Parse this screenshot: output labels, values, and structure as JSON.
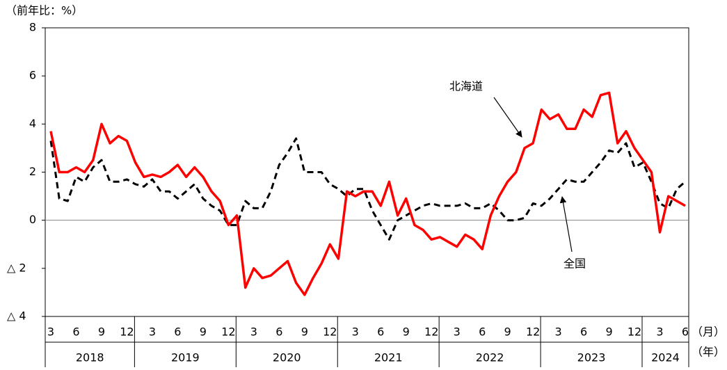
{
  "chart_data": {
    "type": "line",
    "y_axis_label": "（前年比：%）",
    "x_unit_label": "（月）",
    "year_unit_label": "（年）",
    "categories": [
      "3",
      null,
      null,
      "6",
      null,
      null,
      "9",
      null,
      null,
      "12",
      null,
      null,
      "3",
      null,
      null,
      "6",
      null,
      null,
      "9",
      null,
      null,
      "12",
      null,
      null,
      "3",
      null,
      null,
      "6",
      null,
      null,
      "9",
      null,
      null,
      "12",
      null,
      null,
      "3",
      null,
      null,
      "6",
      null,
      null,
      "9",
      null,
      null,
      "12",
      null,
      null,
      "3",
      null,
      null,
      "6",
      null,
      null,
      "9",
      null,
      null,
      "12",
      null,
      null,
      "3",
      null,
      null,
      "6",
      null,
      null,
      "9",
      null,
      null,
      "12",
      null,
      null,
      "3",
      null,
      null,
      "6"
    ],
    "years": [
      "2018",
      "2019",
      "2020",
      "2021",
      "2022",
      "2023",
      "2024"
    ],
    "series": [
      {
        "name": "北海道",
        "color": "#ff0000",
        "dash": false,
        "values": [
          3.7,
          2.0,
          2.0,
          2.2,
          2.0,
          2.5,
          4.0,
          3.2,
          3.5,
          3.3,
          2.4,
          1.8,
          1.9,
          1.8,
          2.0,
          2.3,
          1.8,
          2.2,
          1.8,
          1.2,
          0.8,
          -0.2,
          0.2,
          -2.8,
          -2.0,
          -2.4,
          -2.3,
          -2.0,
          -1.7,
          -2.6,
          -3.1,
          -2.4,
          -1.8,
          -1.0,
          -1.6,
          1.2,
          1.0,
          1.2,
          1.2,
          0.6,
          1.6,
          0.2,
          0.9,
          -0.2,
          -0.4,
          -0.8,
          -0.7,
          -0.9,
          -1.1,
          -0.6,
          -0.8,
          -1.2,
          0.2,
          1.0,
          1.6,
          2.0,
          3.0,
          3.2,
          4.6,
          4.2,
          4.4,
          3.8,
          3.8,
          4.6,
          4.3,
          5.2,
          5.3,
          3.2,
          3.7,
          3.0,
          2.5,
          2.0,
          -0.5,
          1.0,
          0.8,
          0.6
        ]
      },
      {
        "name": "全国",
        "color": "#000000",
        "dash": true,
        "values": [
          3.3,
          0.9,
          0.8,
          1.8,
          1.6,
          2.2,
          2.5,
          1.6,
          1.6,
          1.7,
          1.5,
          1.4,
          1.7,
          1.2,
          1.2,
          0.9,
          1.2,
          1.5,
          0.9,
          0.6,
          0.4,
          -0.2,
          -0.2,
          0.8,
          0.5,
          0.5,
          1.2,
          2.3,
          2.8,
          3.4,
          2.0,
          2.0,
          2.0,
          1.5,
          1.3,
          1.0,
          1.3,
          1.3,
          0.4,
          -0.2,
          -0.8,
          0.0,
          0.2,
          0.4,
          0.6,
          0.7,
          0.6,
          0.6,
          0.6,
          0.7,
          0.5,
          0.5,
          0.7,
          0.4,
          0.0,
          0.0,
          0.1,
          0.7,
          0.6,
          0.9,
          1.3,
          1.7,
          1.6,
          1.6,
          2.0,
          2.4,
          2.9,
          2.8,
          3.2,
          2.2,
          2.4,
          1.6,
          0.7,
          0.5,
          1.3,
          1.6
        ]
      }
    ],
    "ylim": [
      -4,
      8
    ],
    "yticks": [
      {
        "value": -4,
        "label": "△ 4"
      },
      {
        "value": -2,
        "label": "△ 2"
      },
      0,
      2,
      4,
      6,
      8
    ]
  }
}
